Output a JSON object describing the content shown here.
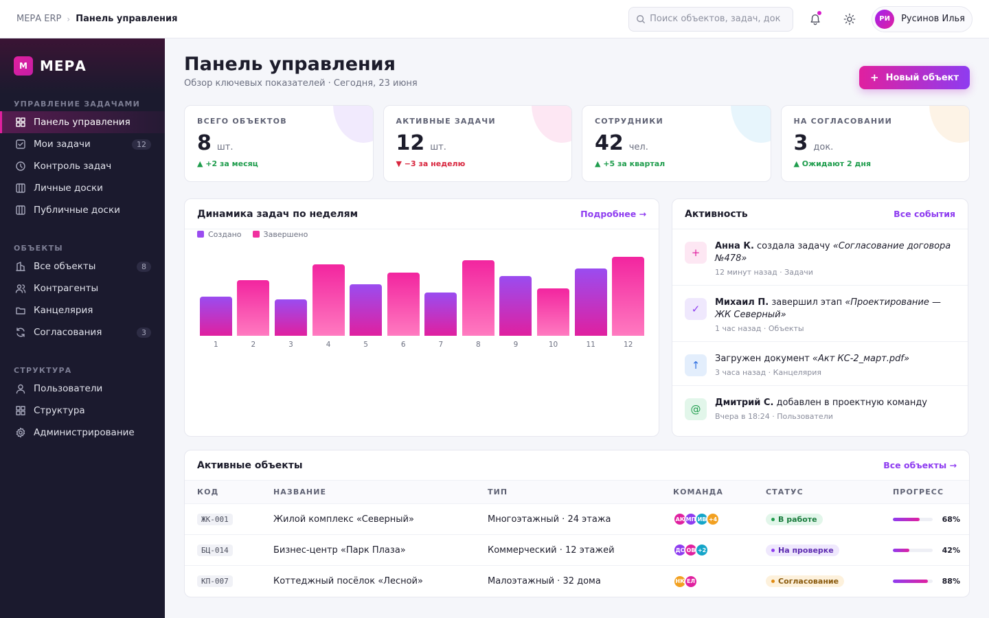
{
  "topbar": {
    "crumb_root": "МЕРА ERP",
    "crumb_separator": "›",
    "crumb_current": "Панель управления",
    "search_placeholder": "Поиск объектов, задач, документов...",
    "user_initials": "РИ",
    "user_name": "Русинов Илья"
  },
  "sidebar": {
    "logo_letter": "М",
    "brand": "МЕРА",
    "sections": [
      {
        "title": "УПРАВЛЕНИЕ ЗАДАЧАМИ",
        "items": [
          {
            "label": "Панель управления",
            "icon": "grid-icon",
            "active": true,
            "badge": ""
          },
          {
            "label": "Мои задачи",
            "icon": "check-square-icon",
            "badge": "12"
          },
          {
            "label": "Контроль задач",
            "icon": "clock-icon",
            "badge": ""
          },
          {
            "label": "Личные доски",
            "icon": "columns-icon",
            "badge": ""
          },
          {
            "label": "Публичные доски",
            "icon": "columns-icon",
            "badge": ""
          }
        ]
      },
      {
        "title": "ОБЪЕКТЫ",
        "items": [
          {
            "label": "Все объекты",
            "icon": "building-icon",
            "badge": "8"
          },
          {
            "label": "Контрагенты",
            "icon": "users-icon",
            "badge": ""
          },
          {
            "label": "Канцелярия",
            "icon": "folder-icon",
            "badge": ""
          },
          {
            "label": "Согласования",
            "icon": "refresh-icon",
            "badge": "3"
          }
        ]
      },
      {
        "title": "СТРУКТУРА",
        "items": [
          {
            "label": "Пользователи",
            "icon": "user-icon",
            "badge": ""
          },
          {
            "label": "Структура",
            "icon": "grid-icon",
            "badge": ""
          },
          {
            "label": "Администрирование",
            "icon": "gear-icon",
            "badge": ""
          }
        ]
      }
    ]
  },
  "header": {
    "title": "Панель управления",
    "subtitle": "Обзор ключевых показателей · Сегодня, 23 июня",
    "new_button_plus": "+",
    "new_button": "Новый объект"
  },
  "kpis": [
    {
      "label": "ВСЕГО ОБЪЕКТОВ",
      "value": "8",
      "unit": "шт.",
      "delta": "▲ +2 за месяц",
      "trend": "up",
      "blob": "#f1eafd"
    },
    {
      "label": "АКТИВНЫЕ ЗАДАЧИ",
      "value": "12",
      "unit": "шт.",
      "delta": "▼ −3 за неделю",
      "trend": "down",
      "blob": "#fde7f3"
    },
    {
      "label": "СОТРУДНИКИ",
      "value": "42",
      "unit": "чел.",
      "delta": "▲ +5 за квартал",
      "trend": "up",
      "blob": "#e7f5fc"
    },
    {
      "label": "НА СОГЛАСОВАНИИ",
      "value": "3",
      "unit": "док.",
      "delta": "▲ Ожидают 2 дня",
      "trend": "up",
      "blob": "#fdf3e6"
    }
  ],
  "chart": {
    "title": "Динамика задач по неделям",
    "link": "Подробнее →"
  },
  "chart_data": {
    "type": "bar",
    "categories": [
      "1",
      "2",
      "3",
      "4",
      "5",
      "6",
      "7",
      "8",
      "9",
      "10",
      "11",
      "12"
    ],
    "series": [
      {
        "name": "Создано",
        "color": "#9a4cf0"
      },
      {
        "name": "Завершено",
        "color": "#f0309f"
      }
    ],
    "bar_series": [
      "Создано",
      "Завершено",
      "Создано",
      "Завершено",
      "Создано",
      "Завершено",
      "Создано",
      "Завершено",
      "Создано",
      "Завершено",
      "Создано",
      "Завершено"
    ],
    "values": [
      49,
      69,
      45,
      89,
      64,
      79,
      54,
      94,
      74,
      59,
      84,
      98
    ],
    "ylim": [
      0,
      100
    ],
    "grid": false,
    "legend": "top-left"
  },
  "activity": {
    "title": "Активность",
    "link": "Все события",
    "items": [
      {
        "icon": "plus-icon",
        "glyph": "+",
        "bg": "#fde7f3",
        "fg": "#e0209f",
        "actor": "Анна К.",
        "action": " создала задачу ",
        "object": "«Согласование договора №478»",
        "meta": "12 минут назад · Задачи"
      },
      {
        "icon": "check-icon",
        "glyph": "✓",
        "bg": "#efe8fd",
        "fg": "#8e3cf0",
        "actor": "Михаил П.",
        "action": " завершил этап ",
        "object": "«Проектирование — ЖК Северный»",
        "meta": "1 час назад · Объекты"
      },
      {
        "icon": "upload-icon",
        "glyph": "↑",
        "bg": "#e3eefc",
        "fg": "#2f6fe0",
        "actor": "",
        "action": "Загружен документ ",
        "object": "«Акт КС-2_март.pdf»",
        "meta": "3 часа назад · Канцелярия"
      },
      {
        "icon": "at-icon",
        "glyph": "@",
        "bg": "#e2f6ea",
        "fg": "#1f9d4d",
        "actor": "Дмитрий С.",
        "action": " добавлен в проектную команду",
        "object": "",
        "meta": "Вчера в 18:24 · Пользователи"
      }
    ]
  },
  "objects": {
    "title": "Активные объекты",
    "link": "Все объекты →",
    "columns": [
      "КОД",
      "НАЗВАНИЕ",
      "ТИП",
      "КОМАНДА",
      "СТАТУС",
      "ПРОГРЕСС"
    ],
    "rows": [
      {
        "code": "ЖК-001",
        "name": "Жилой комплекс «Северный»",
        "type": "Многоэтажный · 24 этажа",
        "team": [
          {
            "i": "АК",
            "c": "#e0209f"
          },
          {
            "i": "МП",
            "c": "#8e3cf0"
          },
          {
            "i": "ИВ",
            "c": "#14a5c9"
          },
          {
            "i": "+4",
            "c": "#f2a020"
          }
        ],
        "status": "В работе",
        "status_bg": "#e2f6ea",
        "status_fg": "#1b7d3e",
        "status_dot": "#1f9d4d",
        "progress": 68,
        "progress_label": "68%"
      },
      {
        "code": "БЦ-014",
        "name": "Бизнес-центр «Парк Плаза»",
        "type": "Коммерческий · 12 этажей",
        "team": [
          {
            "i": "ДС",
            "c": "#8e3cf0"
          },
          {
            "i": "ОВ",
            "c": "#e0209f"
          },
          {
            "i": "+2",
            "c": "#14a5c9"
          }
        ],
        "status": "На проверке",
        "status_bg": "#efe8fd",
        "status_fg": "#5d2bb0",
        "status_dot": "#8e3cf0",
        "progress": 42,
        "progress_label": "42%"
      },
      {
        "code": "КП-007",
        "name": "Коттеджный посёлок «Лесной»",
        "type": "Малоэтажный · 32 дома",
        "team": [
          {
            "i": "НК",
            "c": "#f2a020"
          },
          {
            "i": "ЕЛ",
            "c": "#e0209f"
          }
        ],
        "status": "Согласование",
        "status_bg": "#fdf1dc",
        "status_fg": "#8a5a0c",
        "status_dot": "#e08a10",
        "progress": 88,
        "progress_label": "88%"
      }
    ]
  }
}
